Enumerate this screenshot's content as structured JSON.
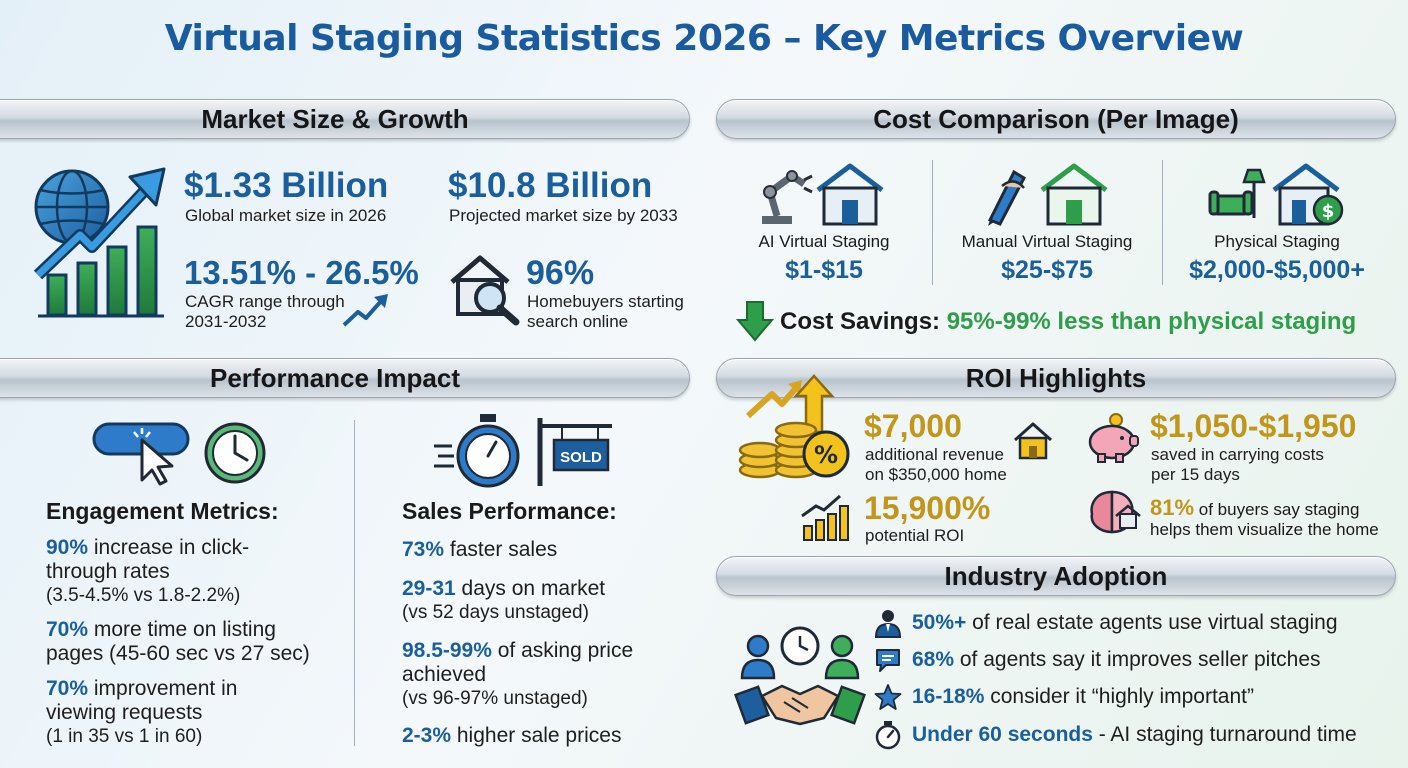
{
  "title": "Virtual Staging Statistics 2026 – Key Metrics Overview",
  "market": {
    "heading": "Market Size & Growth",
    "size_2026": {
      "value": "$1.33 Billion",
      "label": "Global market size in 2026"
    },
    "size_2033": {
      "value": "$10.8 Billion",
      "label": "Projected market size by 2033"
    },
    "cagr": {
      "value": "13.51% - 26.5%",
      "label_line1": "CAGR range through",
      "label_line2": "2031-2032"
    },
    "online": {
      "value": "96%",
      "label_line1": "Homebuyers starting",
      "label_line2": "search online"
    }
  },
  "cost": {
    "heading": "Cost Comparison (Per Image)",
    "items": [
      {
        "name": "AI Virtual Staging",
        "price": "$1-$15"
      },
      {
        "name": "Manual Virtual Staging",
        "price": "$25-$75"
      },
      {
        "name": "Physical Staging",
        "price": "$2,000-$5,000+"
      }
    ],
    "savings_label": "Cost Savings:",
    "savings_value": "95%-99% less than physical staging"
  },
  "performance": {
    "heading": "Performance Impact",
    "engagement": {
      "title": "Engagement Metrics:",
      "m1": {
        "bold": "90%",
        "text1": " increase in click-",
        "text2": "through rates",
        "sub": "(3.5-4.5% vs 1.8-2.2%)"
      },
      "m2": {
        "bold": "70%",
        "text1": " more time on listing",
        "text2": "pages (45-60 sec vs 27 sec)"
      },
      "m3": {
        "bold": "70%",
        "text1": " improvement in",
        "text2": "viewing requests",
        "sub": "(1 in 35 vs 1 in 60)"
      }
    },
    "sales": {
      "title": "Sales Performance:",
      "sold_sign": "SOLD",
      "m1": {
        "bold": "73%",
        "text": " faster sales"
      },
      "m2": {
        "bold": "29-31",
        "text": " days on market",
        "sub": "(vs 52 days unstaged)"
      },
      "m3": {
        "bold": "98.5-99%",
        "text1": " of asking price",
        "text2": "achieved",
        "sub": "(vs 96-97% unstaged)"
      },
      "m4": {
        "bold": "2-3%",
        "text": " higher sale prices"
      }
    }
  },
  "roi": {
    "heading": "ROI Highlights",
    "revenue": {
      "value": "$7,000",
      "label_line1": "additional revenue",
      "label_line2": "on $350,000 home"
    },
    "saved": {
      "value": "$1,050-$1,950",
      "label_line1": "saved in carrying costs",
      "label_line2": "per 15 days"
    },
    "potential": {
      "value": "15,900%",
      "label": "potential ROI"
    },
    "visualize": {
      "bold": "81%",
      "text1": " of buyers say staging",
      "text2": "helps them visualize the home"
    }
  },
  "adoption": {
    "heading": "Industry Adoption",
    "items": [
      {
        "bold": "50%+",
        "text": " of real estate agents use virtual staging"
      },
      {
        "bold": "68%",
        "text": " of agents say it improves seller pitches"
      },
      {
        "bold": "16-18%",
        "text": " consider it “highly important”"
      },
      {
        "bold": "Under 60 seconds",
        "text": " - AI staging turnaround time"
      }
    ]
  },
  "colors": {
    "blue": "#1b5e9c",
    "green": "#2e9e4a",
    "gold": "#c2961a"
  }
}
